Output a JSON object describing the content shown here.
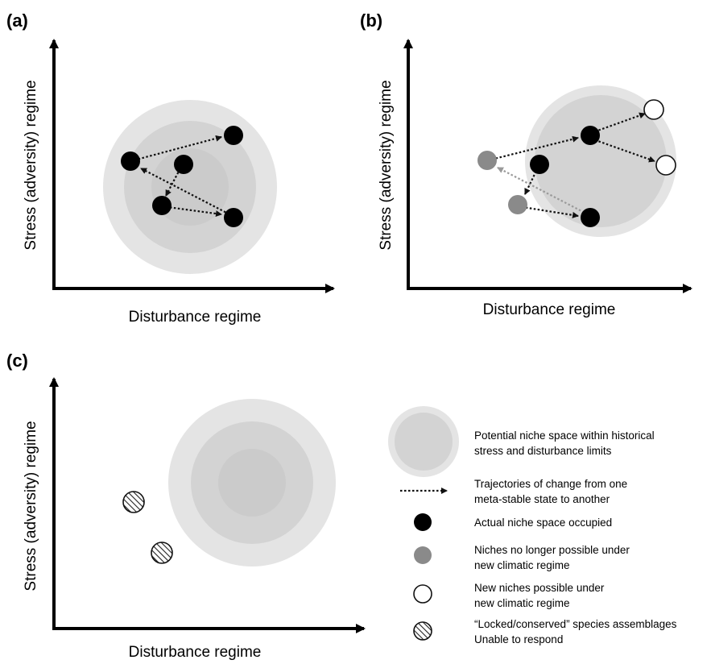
{
  "panels": [
    {
      "id": "a",
      "label": "(a)",
      "xlabel": "Disturbance regime",
      "ylabel": "Stress (adversity) regime"
    },
    {
      "id": "b",
      "label": "(b)",
      "xlabel": "Disturbance regime",
      "ylabel": "Stress (adversity) regime"
    },
    {
      "id": "c",
      "label": "(c)",
      "xlabel": "Disturbance regime",
      "ylabel": "Stress (adversity) regime"
    }
  ],
  "legend": [
    {
      "symbol": "niche-space",
      "lines": [
        "Potential niche space within historical",
        "stress and disturbance limits"
      ]
    },
    {
      "symbol": "trajectory",
      "lines": [
        "Trajectories of change from one",
        "meta-stable state to another"
      ]
    },
    {
      "symbol": "actual",
      "lines": [
        "Actual niche space occupied"
      ]
    },
    {
      "symbol": "lost",
      "lines": [
        "Niches no longer possible under",
        "new climatic regime"
      ]
    },
    {
      "symbol": "new",
      "lines": [
        "New niches possible under",
        "new climatic regime"
      ]
    },
    {
      "symbol": "locked",
      "lines": [
        "“Locked/conserved” species assemblages",
        "Unable to respond"
      ]
    }
  ],
  "colors": {
    "outer_zone": "#e3e3e3",
    "inner_zone": "#d2d2d2",
    "core_zone": "#c9c9c9",
    "actual_niche": "#000000",
    "lost_niche": "#8a8a8a",
    "new_niche": "#ffffff",
    "axis": "#000000"
  }
}
